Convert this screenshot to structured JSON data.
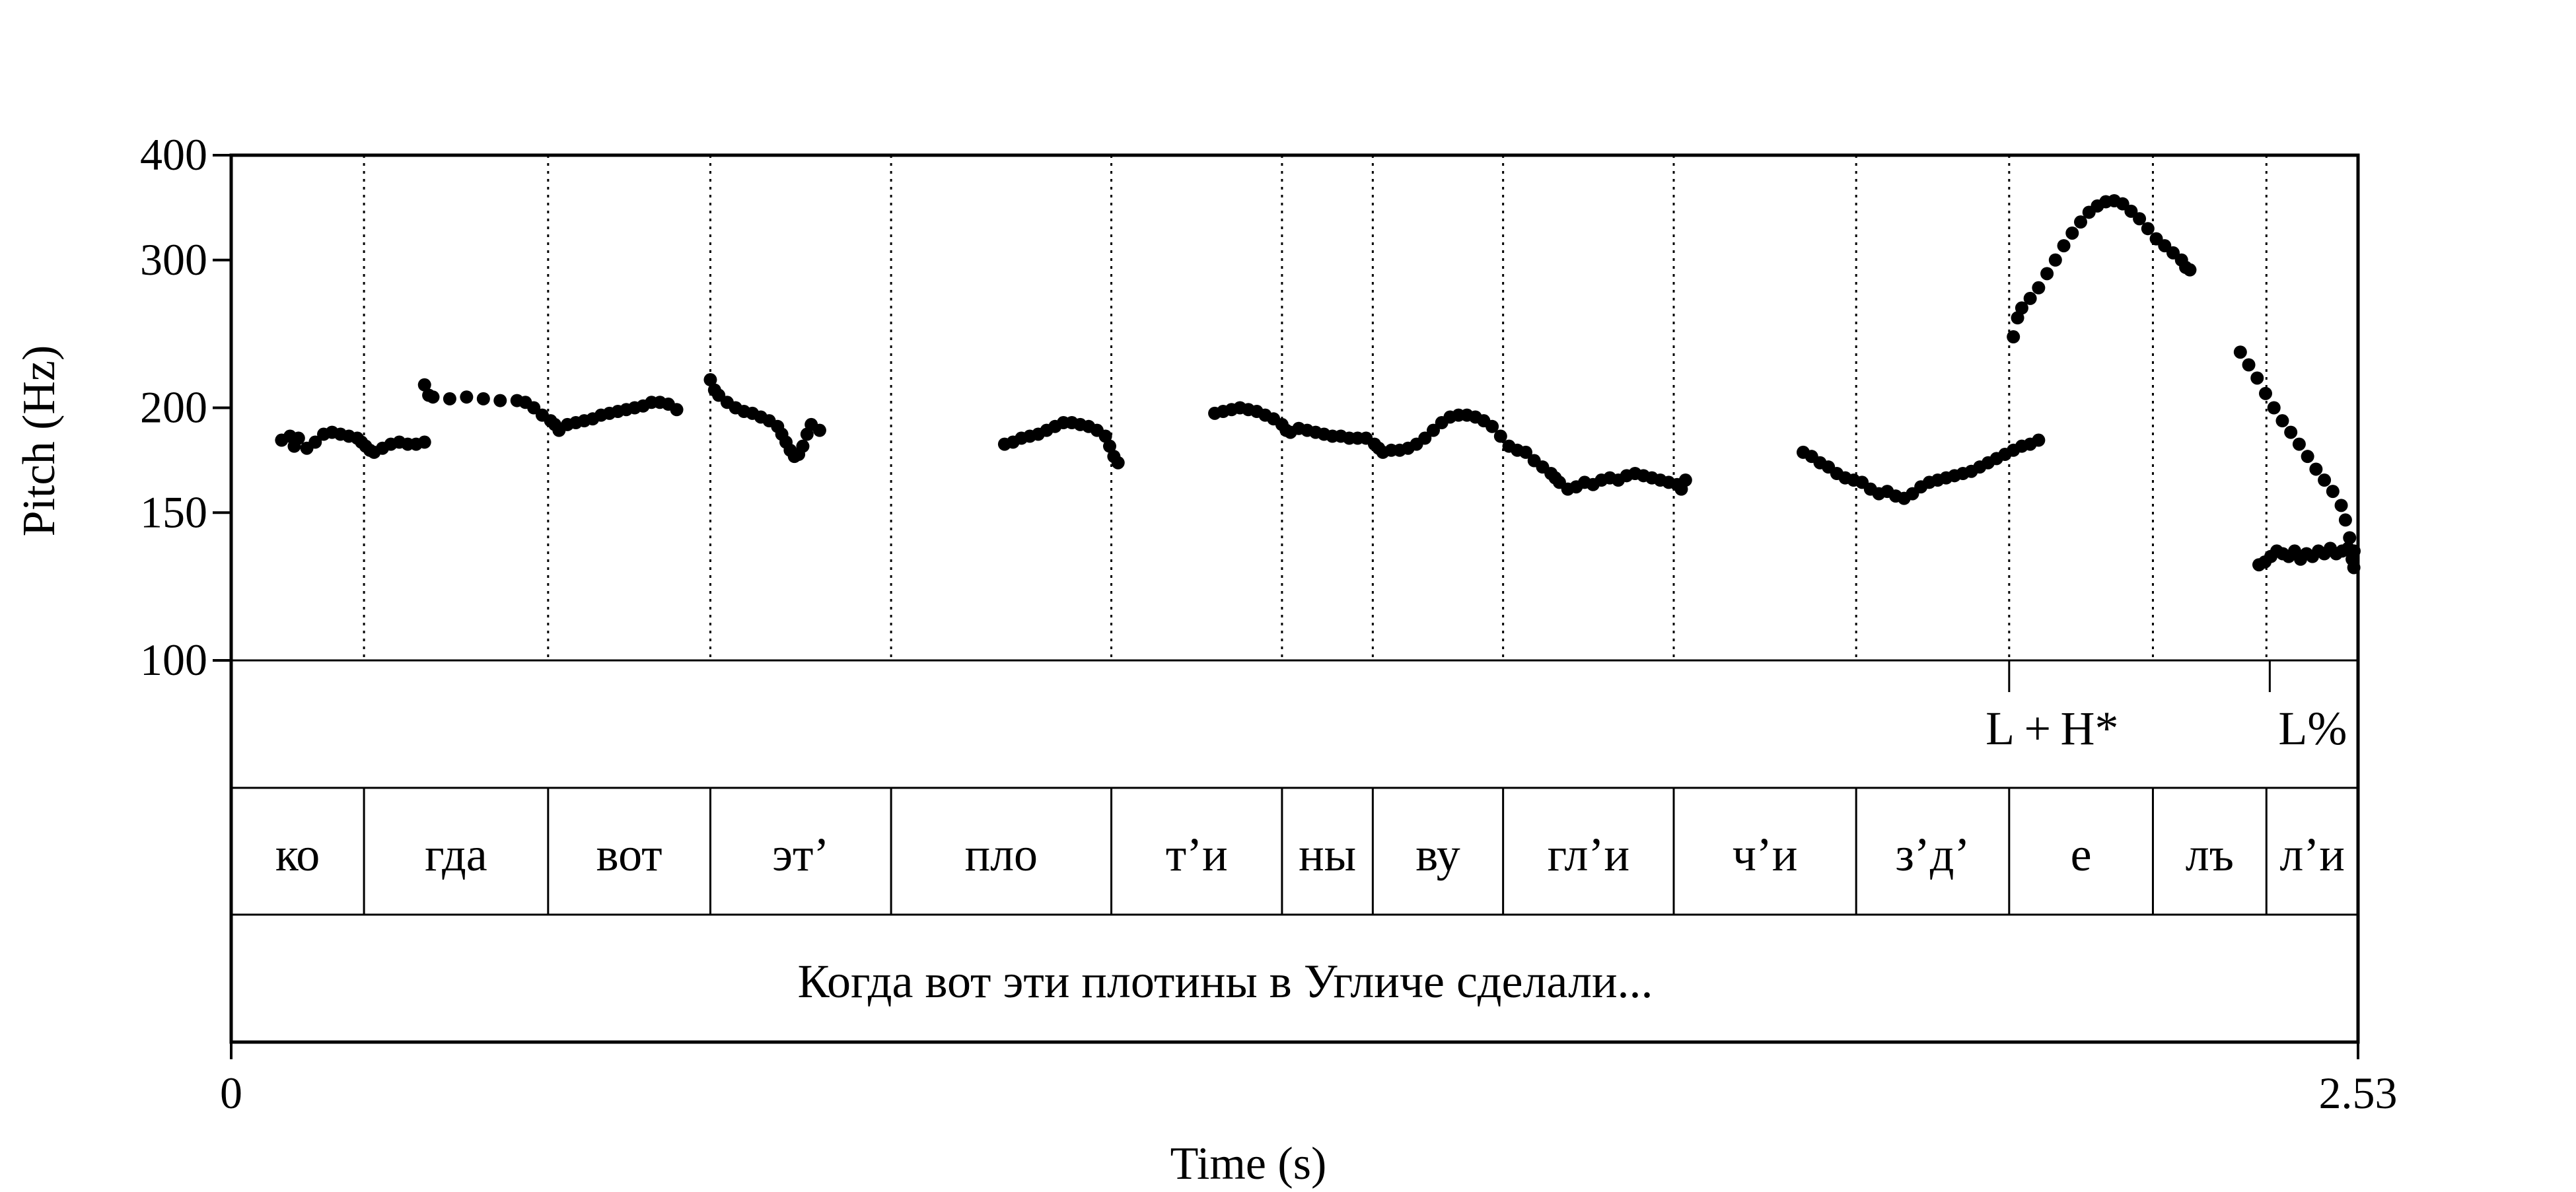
{
  "chart_data": {
    "type": "scatter",
    "xlabel": "Time (s)",
    "ylabel": "Pitch (Hz)",
    "xlim": [
      0,
      2.53
    ],
    "ylim": [
      100,
      400
    ],
    "yscale": "log",
    "x_tick_labels": [
      "0",
      "2.53"
    ],
    "x_ticks": [
      0,
      2.53
    ],
    "y_tick_labels": [
      "100",
      "150",
      "200",
      "300",
      "400"
    ],
    "y_ticks": [
      100,
      150,
      200,
      300,
      400
    ],
    "grid": false,
    "marker_color": "#000000",
    "series": [
      {
        "points": [
          [
            0.06,
            183
          ],
          [
            0.07,
            185
          ],
          [
            0.075,
            180
          ],
          [
            0.08,
            184
          ],
          [
            0.09,
            179
          ],
          [
            0.1,
            182
          ],
          [
            0.11,
            186
          ],
          [
            0.12,
            187
          ],
          [
            0.13,
            186
          ],
          [
            0.14,
            185
          ],
          [
            0.15,
            184
          ],
          [
            0.155,
            182
          ],
          [
            0.16,
            180
          ],
          [
            0.165,
            178
          ],
          [
            0.17,
            177
          ],
          [
            0.18,
            179
          ],
          [
            0.19,
            181
          ],
          [
            0.2,
            182
          ],
          [
            0.21,
            181
          ],
          [
            0.22,
            181
          ],
          [
            0.23,
            182
          ],
          [
            0.23,
            213
          ],
          [
            0.235,
            207
          ],
          [
            0.24,
            206
          ],
          [
            0.26,
            205
          ],
          [
            0.28,
            206
          ],
          [
            0.3,
            205
          ],
          [
            0.32,
            204
          ],
          [
            0.34,
            204
          ],
          [
            0.35,
            203
          ],
          [
            0.36,
            200
          ],
          [
            0.37,
            196
          ],
          [
            0.38,
            193
          ],
          [
            0.385,
            191
          ],
          [
            0.39,
            188
          ],
          [
            0.4,
            191
          ],
          [
            0.41,
            192
          ],
          [
            0.42,
            193
          ],
          [
            0.43,
            194
          ],
          [
            0.44,
            196
          ],
          [
            0.45,
            197
          ],
          [
            0.46,
            198
          ],
          [
            0.47,
            199
          ],
          [
            0.48,
            200
          ],
          [
            0.49,
            201
          ],
          [
            0.5,
            203
          ],
          [
            0.51,
            203
          ],
          [
            0.52,
            202
          ],
          [
            0.53,
            199
          ],
          [
            0.57,
            216
          ],
          [
            0.575,
            210
          ],
          [
            0.58,
            207
          ],
          [
            0.59,
            203
          ],
          [
            0.6,
            200
          ],
          [
            0.61,
            198
          ],
          [
            0.62,
            197
          ],
          [
            0.63,
            195
          ],
          [
            0.64,
            193
          ],
          [
            0.65,
            190
          ],
          [
            0.655,
            186
          ],
          [
            0.66,
            182
          ],
          [
            0.665,
            178
          ],
          [
            0.67,
            175
          ],
          [
            0.675,
            176
          ],
          [
            0.68,
            180
          ],
          [
            0.685,
            186
          ],
          [
            0.69,
            191
          ],
          [
            0.7,
            188
          ],
          [
            0.92,
            181
          ],
          [
            0.93,
            182
          ],
          [
            0.94,
            184
          ],
          [
            0.95,
            185
          ],
          [
            0.96,
            186
          ],
          [
            0.97,
            188
          ],
          [
            0.98,
            190
          ],
          [
            0.99,
            192
          ],
          [
            1.0,
            192
          ],
          [
            1.01,
            191
          ],
          [
            1.02,
            190
          ],
          [
            1.03,
            188
          ],
          [
            1.04,
            185
          ],
          [
            1.045,
            180
          ],
          [
            1.05,
            175
          ],
          [
            1.055,
            172
          ],
          [
            1.17,
            197
          ],
          [
            1.18,
            198
          ],
          [
            1.19,
            199
          ],
          [
            1.2,
            200
          ],
          [
            1.21,
            199
          ],
          [
            1.22,
            198
          ],
          [
            1.23,
            196
          ],
          [
            1.24,
            194
          ],
          [
            1.25,
            191
          ],
          [
            1.255,
            188
          ],
          [
            1.26,
            187
          ],
          [
            1.27,
            189
          ],
          [
            1.28,
            188
          ],
          [
            1.29,
            187
          ],
          [
            1.3,
            186
          ],
          [
            1.31,
            185
          ],
          [
            1.32,
            185
          ],
          [
            1.33,
            184
          ],
          [
            1.34,
            184
          ],
          [
            1.35,
            184
          ],
          [
            1.36,
            181
          ],
          [
            1.365,
            179
          ],
          [
            1.37,
            177
          ],
          [
            1.38,
            178
          ],
          [
            1.39,
            178
          ],
          [
            1.4,
            179
          ],
          [
            1.41,
            181
          ],
          [
            1.42,
            184
          ],
          [
            1.43,
            188
          ],
          [
            1.44,
            192
          ],
          [
            1.45,
            195
          ],
          [
            1.46,
            196
          ],
          [
            1.47,
            196
          ],
          [
            1.48,
            195
          ],
          [
            1.49,
            193
          ],
          [
            1.5,
            190
          ],
          [
            1.51,
            185
          ],
          [
            1.52,
            180
          ],
          [
            1.53,
            178
          ],
          [
            1.54,
            177
          ],
          [
            1.55,
            173
          ],
          [
            1.56,
            170
          ],
          [
            1.57,
            167
          ],
          [
            1.575,
            165
          ],
          [
            1.58,
            163
          ],
          [
            1.59,
            160
          ],
          [
            1.6,
            161
          ],
          [
            1.61,
            163
          ],
          [
            1.62,
            162
          ],
          [
            1.63,
            164
          ],
          [
            1.64,
            165
          ],
          [
            1.65,
            164
          ],
          [
            1.66,
            166
          ],
          [
            1.67,
            167
          ],
          [
            1.68,
            166
          ],
          [
            1.69,
            165
          ],
          [
            1.7,
            164
          ],
          [
            1.71,
            163
          ],
          [
            1.72,
            162
          ],
          [
            1.725,
            160
          ],
          [
            1.73,
            164
          ],
          [
            1.87,
            177
          ],
          [
            1.88,
            175
          ],
          [
            1.89,
            172
          ],
          [
            1.9,
            170
          ],
          [
            1.91,
            167
          ],
          [
            1.92,
            165
          ],
          [
            1.93,
            164
          ],
          [
            1.94,
            163
          ],
          [
            1.95,
            160
          ],
          [
            1.96,
            158
          ],
          [
            1.97,
            159
          ],
          [
            1.98,
            157
          ],
          [
            1.99,
            156
          ],
          [
            2.0,
            158
          ],
          [
            2.01,
            161
          ],
          [
            2.02,
            163
          ],
          [
            2.03,
            164
          ],
          [
            2.04,
            165
          ],
          [
            2.05,
            166
          ],
          [
            2.06,
            167
          ],
          [
            2.07,
            168
          ],
          [
            2.08,
            170
          ],
          [
            2.09,
            172
          ],
          [
            2.1,
            174
          ],
          [
            2.11,
            176
          ],
          [
            2.12,
            178
          ],
          [
            2.13,
            180
          ],
          [
            2.14,
            181
          ],
          [
            2.15,
            183
          ],
          [
            2.12,
            243
          ],
          [
            2.125,
            256
          ],
          [
            2.13,
            263
          ],
          [
            2.14,
            270
          ],
          [
            2.15,
            278
          ],
          [
            2.16,
            289
          ],
          [
            2.17,
            300
          ],
          [
            2.18,
            312
          ],
          [
            2.19,
            323
          ],
          [
            2.2,
            333
          ],
          [
            2.21,
            342
          ],
          [
            2.22,
            348
          ],
          [
            2.23,
            352
          ],
          [
            2.24,
            353
          ],
          [
            2.25,
            350
          ],
          [
            2.26,
            343
          ],
          [
            2.27,
            336
          ],
          [
            2.28,
            327
          ],
          [
            2.29,
            318
          ],
          [
            2.3,
            312
          ],
          [
            2.31,
            306
          ],
          [
            2.32,
            300
          ],
          [
            2.325,
            294
          ],
          [
            2.33,
            292
          ],
          [
            2.39,
            233
          ],
          [
            2.4,
            225
          ],
          [
            2.41,
            217
          ],
          [
            2.42,
            208
          ],
          [
            2.43,
            200
          ],
          [
            2.44,
            193
          ],
          [
            2.45,
            187
          ],
          [
            2.46,
            181
          ],
          [
            2.47,
            175
          ],
          [
            2.48,
            169
          ],
          [
            2.49,
            164
          ],
          [
            2.5,
            159
          ],
          [
            2.51,
            153
          ],
          [
            2.515,
            147
          ],
          [
            2.52,
            140
          ],
          [
            2.523,
            132
          ],
          [
            2.525,
            129
          ]
        ]
      },
      {
        "points_note_hidden": true,
        "points": [
          [
            2.53,
            135
          ]
        ]
      }
    ],
    "tiers": [
      {
        "name": "tones",
        "boundaries": [
          2.115,
          2.425
        ],
        "labels": [
          {
            "text": "L + H*",
            "at": 2.115
          },
          {
            "text": "L%",
            "at": 2.425
          }
        ]
      },
      {
        "name": "syllables",
        "boundaries": [
          0,
          0.158,
          0.377,
          0.57,
          0.785,
          1.047,
          1.25,
          1.358,
          1.513,
          1.716,
          1.933,
          2.115,
          2.286,
          2.421,
          2.53
        ],
        "labels": [
          "ко",
          "гда",
          "вот",
          "эт’",
          "пло",
          "т’и",
          "ны",
          "ву",
          "гл’и",
          "ч’и",
          "з’д’",
          "е",
          "лъ",
          "л’и"
        ]
      },
      {
        "name": "sentence",
        "labels": [
          "Когда вот эти плотины в Угличе сделали..."
        ]
      }
    ]
  }
}
